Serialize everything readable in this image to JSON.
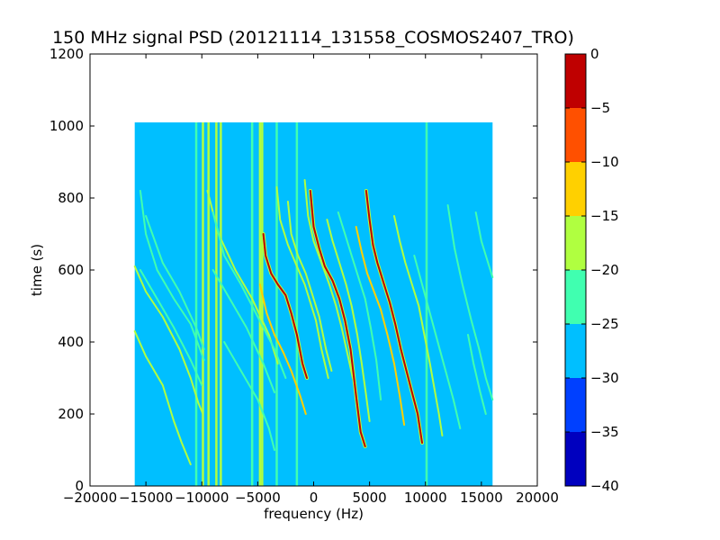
{
  "chart_data": {
    "type": "heatmap",
    "title": "150 MHz signal PSD (20121114_131558_COSMOS2407_TRO)",
    "xlabel": "frequency (Hz)",
    "ylabel": "time (s)",
    "xlim": [
      -20000,
      20000
    ],
    "ylim": [
      0,
      1200
    ],
    "x_ticks": [
      -20000,
      -15000,
      -10000,
      -5000,
      0,
      5000,
      10000,
      15000,
      20000
    ],
    "x_tick_labels": [
      "−20000",
      "−15000",
      "−10000",
      "−5000",
      "0",
      "5000",
      "10000",
      "15000",
      "20000"
    ],
    "y_ticks": [
      0,
      200,
      400,
      600,
      800,
      1000,
      1200
    ],
    "y_tick_labels": [
      "0",
      "200",
      "400",
      "600",
      "800",
      "1000",
      "1200"
    ],
    "data_extent": {
      "x": [
        -16000,
        16000
      ],
      "y": [
        0,
        1010
      ]
    },
    "background_level": -27.5,
    "colorbar": {
      "levels": [
        -40,
        -35,
        -30,
        -25,
        -20,
        -15,
        -10,
        -5,
        0
      ],
      "tick_labels": [
        "−40",
        "−35",
        "−30",
        "−25",
        "−20",
        "−15",
        "−10",
        "−5",
        "0"
      ],
      "colors": [
        "#0000bf",
        "#0040ff",
        "#00bfff",
        "#40ffb0",
        "#b0ff40",
        "#ffd000",
        "#ff5000",
        "#bf0000"
      ]
    },
    "vertical_lines": [
      {
        "x": -10500,
        "level": -22.5
      },
      {
        "x": -9900,
        "level": -17.5
      },
      {
        "x": -9400,
        "level": -17.5
      },
      {
        "x": -8700,
        "level": -17.5
      },
      {
        "x": -8300,
        "level": -17.5
      },
      {
        "x": -5500,
        "level": -22.5
      },
      {
        "x": -4800,
        "level": -17.5
      },
      {
        "x": -4600,
        "level": -17.5
      },
      {
        "x": -3300,
        "level": -22.5
      },
      {
        "x": -1500,
        "level": -22.5
      },
      {
        "x": 10100,
        "level": -22.5
      }
    ],
    "tracks": [
      {
        "points": [
          [
            -15500,
            820
          ],
          [
            -15000,
            700
          ],
          [
            -14000,
            600
          ],
          [
            -12500,
            520
          ],
          [
            -11000,
            450
          ],
          [
            -9800,
            350
          ]
        ],
        "level": -22.5
      },
      {
        "points": [
          [
            -15000,
            750
          ],
          [
            -13500,
            620
          ],
          [
            -12000,
            540
          ],
          [
            -10500,
            440
          ],
          [
            -9800,
            380
          ]
        ],
        "level": -22.5
      },
      {
        "points": [
          [
            -16000,
            610
          ],
          [
            -15000,
            540
          ],
          [
            -13500,
            470
          ],
          [
            -12000,
            380
          ],
          [
            -11000,
            300
          ],
          [
            -10300,
            230
          ],
          [
            -9900,
            200
          ]
        ],
        "level": -17.5
      },
      {
        "points": [
          [
            -16000,
            430
          ],
          [
            -15000,
            360
          ],
          [
            -13500,
            280
          ],
          [
            -12500,
            180
          ],
          [
            -11800,
            120
          ],
          [
            -11000,
            60
          ]
        ],
        "level": -17.5
      },
      {
        "points": [
          [
            -15500,
            600
          ],
          [
            -14000,
            520
          ],
          [
            -12500,
            440
          ],
          [
            -11000,
            350
          ],
          [
            -10000,
            280
          ]
        ],
        "level": -22.5
      },
      {
        "points": [
          [
            -9500,
            820
          ],
          [
            -8500,
            700
          ],
          [
            -7000,
            600
          ],
          [
            -5500,
            520
          ],
          [
            -4000,
            420
          ],
          [
            -3200,
            340
          ]
        ],
        "level": -17.5
      },
      {
        "points": [
          [
            -9000,
            760
          ],
          [
            -8000,
            640
          ],
          [
            -6500,
            560
          ],
          [
            -5000,
            470
          ],
          [
            -3500,
            380
          ],
          [
            -2500,
            300
          ]
        ],
        "level": -22.5
      },
      {
        "points": [
          [
            -9000,
            600
          ],
          [
            -7500,
            520
          ],
          [
            -6000,
            440
          ],
          [
            -4500,
            340
          ],
          [
            -3500,
            260
          ]
        ],
        "level": -22.5
      },
      {
        "points": [
          [
            -8000,
            400
          ],
          [
            -6500,
            320
          ],
          [
            -5000,
            240
          ],
          [
            -4000,
            160
          ],
          [
            -3500,
            100
          ]
        ],
        "level": -22.5
      },
      {
        "points": [
          [
            -4500,
            700
          ],
          [
            -4300,
            640
          ],
          [
            -3800,
            590
          ],
          [
            -3200,
            560
          ],
          [
            -2500,
            530
          ],
          [
            -2000,
            480
          ],
          [
            -1500,
            420
          ],
          [
            -1000,
            340
          ],
          [
            -600,
            300
          ]
        ],
        "level": -2.5
      },
      {
        "points": [
          [
            -4800,
            560
          ],
          [
            -4200,
            480
          ],
          [
            -3500,
            420
          ],
          [
            -2700,
            370
          ],
          [
            -2000,
            320
          ],
          [
            -1200,
            250
          ],
          [
            -700,
            200
          ]
        ],
        "level": -12.5
      },
      {
        "points": [
          [
            -3300,
            830
          ],
          [
            -3000,
            740
          ],
          [
            -2300,
            670
          ],
          [
            -1500,
            610
          ],
          [
            -800,
            560
          ],
          [
            -300,
            510
          ],
          [
            200,
            460
          ],
          [
            700,
            380
          ],
          [
            1300,
            300
          ]
        ],
        "level": -17.5
      },
      {
        "points": [
          [
            -2300,
            790
          ],
          [
            -2000,
            700
          ],
          [
            -1400,
            640
          ],
          [
            -700,
            590
          ],
          [
            0,
            520
          ],
          [
            500,
            470
          ],
          [
            1100,
            380
          ],
          [
            1600,
            320
          ]
        ],
        "level": -17.5
      },
      {
        "points": [
          [
            -800,
            850
          ],
          [
            -500,
            750
          ],
          [
            0,
            680
          ],
          [
            700,
            620
          ],
          [
            1400,
            560
          ],
          [
            2000,
            500
          ],
          [
            2500,
            440
          ],
          [
            3000,
            370
          ],
          [
            3500,
            300
          ]
        ],
        "level": -17.5
      },
      {
        "points": [
          [
            -300,
            820
          ],
          [
            0,
            720
          ],
          [
            500,
            660
          ],
          [
            1000,
            610
          ],
          [
            1700,
            570
          ],
          [
            2300,
            520
          ],
          [
            2800,
            460
          ],
          [
            3300,
            380
          ],
          [
            3800,
            250
          ],
          [
            4200,
            150
          ],
          [
            4600,
            110
          ]
        ],
        "level": -2.5
      },
      {
        "points": [
          [
            1200,
            740
          ],
          [
            1700,
            680
          ],
          [
            2300,
            620
          ],
          [
            2900,
            560
          ],
          [
            3400,
            500
          ],
          [
            3900,
            420
          ],
          [
            4300,
            340
          ],
          [
            4700,
            250
          ],
          [
            5000,
            180
          ]
        ],
        "level": -17.5
      },
      {
        "points": [
          [
            2200,
            760
          ],
          [
            2800,
            700
          ],
          [
            3400,
            640
          ],
          [
            4000,
            580
          ],
          [
            4600,
            520
          ],
          [
            5100,
            440
          ],
          [
            5600,
            350
          ],
          [
            6000,
            240
          ]
        ],
        "level": -22.5
      },
      {
        "points": [
          [
            4700,
            820
          ],
          [
            5000,
            740
          ],
          [
            5300,
            670
          ],
          [
            5700,
            620
          ],
          [
            6200,
            570
          ],
          [
            6800,
            510
          ],
          [
            7300,
            450
          ],
          [
            7800,
            380
          ],
          [
            8300,
            320
          ],
          [
            8800,
            260
          ],
          [
            9300,
            200
          ],
          [
            9700,
            120
          ]
        ],
        "level": -2.5
      },
      {
        "points": [
          [
            3800,
            720
          ],
          [
            4300,
            650
          ],
          [
            4800,
            590
          ],
          [
            5400,
            540
          ],
          [
            6000,
            490
          ],
          [
            6600,
            420
          ],
          [
            7200,
            340
          ],
          [
            7700,
            250
          ],
          [
            8100,
            170
          ]
        ],
        "level": -12.5
      },
      {
        "points": [
          [
            7200,
            750
          ],
          [
            7700,
            680
          ],
          [
            8200,
            620
          ],
          [
            8800,
            560
          ],
          [
            9400,
            500
          ],
          [
            9900,
            420
          ],
          [
            10400,
            340
          ],
          [
            10800,
            270
          ],
          [
            11200,
            200
          ],
          [
            11500,
            140
          ]
        ],
        "level": -17.5
      },
      {
        "points": [
          [
            9000,
            640
          ],
          [
            9700,
            560
          ],
          [
            10400,
            480
          ],
          [
            11100,
            400
          ],
          [
            11800,
            320
          ],
          [
            12500,
            240
          ],
          [
            13100,
            160
          ]
        ],
        "level": -22.5
      },
      {
        "points": [
          [
            12000,
            780
          ],
          [
            12600,
            660
          ],
          [
            13300,
            560
          ],
          [
            14100,
            460
          ],
          [
            14800,
            380
          ],
          [
            15400,
            300
          ],
          [
            16000,
            240
          ]
        ],
        "level": -22.5
      },
      {
        "points": [
          [
            14500,
            760
          ],
          [
            15000,
            680
          ],
          [
            15600,
            620
          ],
          [
            16000,
            580
          ]
        ],
        "level": -22.5
      },
      {
        "points": [
          [
            13800,
            420
          ],
          [
            14300,
            340
          ],
          [
            14900,
            260
          ],
          [
            15400,
            200
          ]
        ],
        "level": -22.5
      }
    ]
  }
}
